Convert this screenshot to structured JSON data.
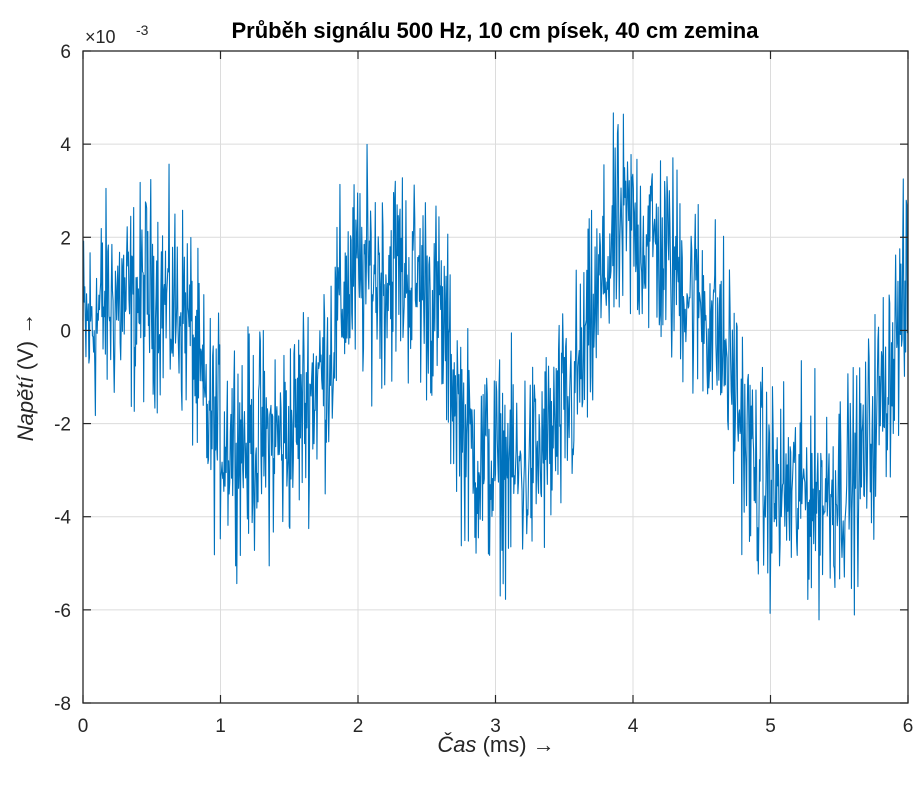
{
  "chart_data": {
    "type": "line",
    "title": "Průběh signálu 500 Hz, 10 cm písek, 40 cm zemina",
    "xlabel": "Čas",
    "xlabel_unit": "(ms)",
    "ylabel": "Napětí",
    "ylabel_unit": "(V)",
    "arrow": "→",
    "y_multiplier": "×10",
    "y_exponent": "-3",
    "xlim": [
      0,
      6
    ],
    "ylim": [
      -8,
      6
    ],
    "x_ticks": [
      "0",
      "1",
      "2",
      "3",
      "4",
      "5",
      "6"
    ],
    "y_ticks": [
      "-8",
      "-6",
      "-4",
      "-2",
      "0",
      "2",
      "4",
      "6"
    ],
    "grid": true,
    "series": [
      {
        "color": "#0072BD",
        "x": [
          0,
          0.05,
          0.1,
          0.15,
          0.2,
          0.25,
          0.3,
          0.35,
          0.4,
          0.45,
          0.5,
          0.55,
          0.6,
          0.65,
          0.7,
          0.75,
          0.8,
          0.85,
          0.9,
          0.95,
          1.0,
          1.05,
          1.1,
          1.15,
          1.2,
          1.25,
          1.3,
          1.35,
          1.4,
          1.45,
          1.5,
          1.55,
          1.6,
          1.65,
          1.7,
          1.75,
          1.8,
          1.85,
          1.9,
          1.95,
          2.0,
          2.05,
          2.1,
          2.15,
          2.2,
          2.25,
          2.3,
          2.35,
          2.4,
          2.45,
          2.5,
          2.55,
          2.6,
          2.65,
          2.7,
          2.75,
          2.8,
          2.85,
          2.9,
          2.95,
          3.0,
          3.05,
          3.1,
          3.15,
          3.2,
          3.25,
          3.3,
          3.35,
          3.4,
          3.45,
          3.5,
          3.55,
          3.6,
          3.65,
          3.7,
          3.75,
          3.8,
          3.85,
          3.9,
          3.95,
          4.0,
          4.05,
          4.1,
          4.15,
          4.2,
          4.25,
          4.3,
          4.35,
          4.4,
          4.45,
          4.5,
          4.55,
          4.6,
          4.65,
          4.7,
          4.75,
          4.8,
          4.85,
          4.9,
          4.95,
          5.0,
          5.05,
          5.1,
          5.15,
          5.2,
          5.25,
          5.3,
          5.35,
          5.4,
          5.45,
          5.5,
          5.55,
          5.6,
          5.65,
          5.7,
          5.75,
          5.8,
          5.85,
          5.9,
          5.95,
          6.0
        ],
        "y": [
          0.0,
          0.1,
          0.3,
          0.5,
          0.6,
          0.7,
          0.6,
          0.5,
          0.7,
          0.8,
          0.9,
          0.8,
          0.6,
          0.5,
          0.5,
          0.4,
          -0.3,
          -1.2,
          -1.8,
          -2.1,
          -2.2,
          -2.3,
          -2.2,
          -2.3,
          -2.5,
          -2.4,
          -2.3,
          -2.5,
          -2.3,
          -2.4,
          -2.2,
          -2.0,
          -1.6,
          -1.3,
          -1.1,
          -0.9,
          -0.4,
          0.3,
          0.8,
          1.0,
          1.1,
          1.2,
          1.3,
          1.2,
          1.1,
          1.3,
          1.4,
          1.2,
          1.1,
          1.0,
          0.9,
          0.6,
          0.3,
          -0.4,
          -1.2,
          -1.9,
          -2.4,
          -2.7,
          -2.8,
          -2.9,
          -2.9,
          -3.0,
          -2.9,
          -3.1,
          -3.0,
          -2.9,
          -2.8,
          -2.6,
          -2.4,
          -2.1,
          -1.9,
          -1.5,
          -1.0,
          -0.5,
          0.1,
          0.7,
          1.3,
          1.8,
          2.1,
          2.2,
          2.2,
          2.1,
          2.0,
          1.9,
          1.7,
          1.5,
          1.4,
          1.2,
          0.9,
          0.7,
          0.6,
          0.3,
          0.1,
          -0.3,
          -0.8,
          -1.4,
          -2.1,
          -2.7,
          -3.1,
          -3.3,
          -3.4,
          -3.5,
          -3.4,
          -3.5,
          -3.6,
          -3.4,
          -3.5,
          -3.6,
          -3.5,
          -3.4,
          -3.3,
          -3.2,
          -3.3,
          -3.0,
          -2.5,
          -2.0,
          -1.5,
          -1.0,
          -0.3,
          0.3,
          0.8
        ],
        "noise_envelope": 1.8
      }
    ]
  }
}
